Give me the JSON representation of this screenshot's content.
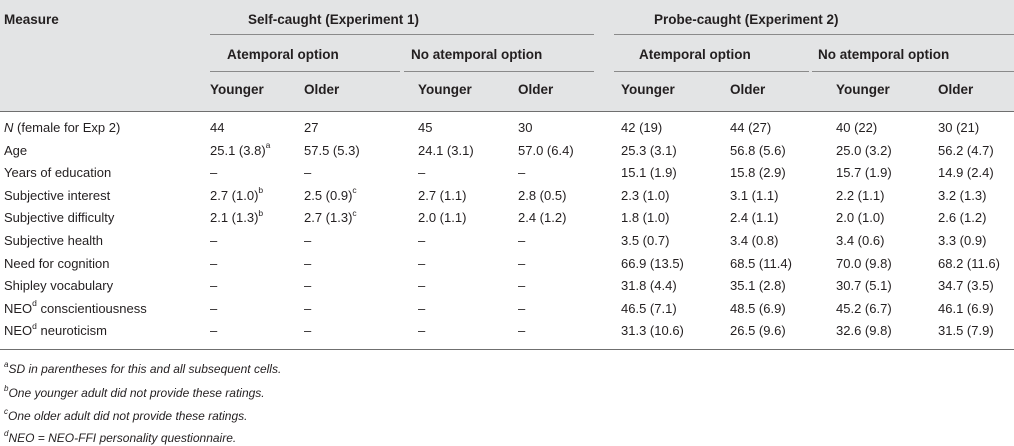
{
  "table": {
    "measure_header": "Measure",
    "exp1_header": "Self-caught (Experiment 1)",
    "exp2_header": "Probe-caught (Experiment 2)",
    "atemporal_option": "Atemporal option",
    "no_atemporal_option": "No atemporal option",
    "younger": "Younger",
    "older": "Older",
    "rows": [
      {
        "measure_italic": "N",
        "measure": " (female for Exp 2)",
        "values": [
          "44",
          "27",
          "45",
          "30",
          "42 (19)",
          "44 (27)",
          "40 (22)",
          "30 (21)"
        ],
        "sups": [
          "",
          "",
          "",
          "",
          "",
          "",
          "",
          ""
        ]
      },
      {
        "measure_italic": "",
        "measure": "Age",
        "values": [
          "25.1 (3.8)",
          "57.5 (5.3)",
          "24.1 (3.1)",
          "57.0 (6.4)",
          "25.3 (3.1)",
          "56.8 (5.6)",
          "25.0 (3.2)",
          "56.2 (4.7)"
        ],
        "sups": [
          "a",
          "",
          "",
          "",
          "",
          "",
          "",
          ""
        ]
      },
      {
        "measure_italic": "",
        "measure": "Years of education",
        "values": [
          "–",
          "–",
          "–",
          "–",
          "15.1 (1.9)",
          "15.8 (2.9)",
          "15.7 (1.9)",
          "14.9 (2.4)"
        ],
        "sups": [
          "",
          "",
          "",
          "",
          "",
          "",
          "",
          ""
        ]
      },
      {
        "measure_italic": "",
        "measure": "Subjective interest",
        "values": [
          "2.7 (1.0)",
          "2.5 (0.9)",
          "2.7 (1.1)",
          "2.8 (0.5)",
          "2.3 (1.0)",
          "3.1 (1.1)",
          "2.2 (1.1)",
          "3.2 (1.3)"
        ],
        "sups": [
          "b",
          "c",
          "",
          "",
          "",
          "",
          "",
          ""
        ]
      },
      {
        "measure_italic": "",
        "measure": "Subjective difficulty",
        "values": [
          "2.1 (1.3)",
          "2.7 (1.3)",
          "2.0 (1.1)",
          "2.4 (1.2)",
          "1.8 (1.0)",
          "2.4 (1.1)",
          "2.0 (1.0)",
          "2.6 (1.2)"
        ],
        "sups": [
          "b",
          "c",
          "",
          "",
          "",
          "",
          "",
          ""
        ]
      },
      {
        "measure_italic": "",
        "measure": "Subjective health",
        "values": [
          "–",
          "–",
          "–",
          "–",
          "3.5 (0.7)",
          "3.4 (0.8)",
          "3.4 (0.6)",
          "3.3 (0.9)"
        ],
        "sups": [
          "",
          "",
          "",
          "",
          "",
          "",
          "",
          ""
        ]
      },
      {
        "measure_italic": "",
        "measure": "Need for cognition",
        "values": [
          "–",
          "–",
          "–",
          "–",
          "66.9 (13.5)",
          "68.5 (11.4)",
          "70.0 (9.8)",
          "68.2 (11.6)"
        ],
        "sups": [
          "",
          "",
          "",
          "",
          "",
          "",
          "",
          ""
        ]
      },
      {
        "measure_italic": "",
        "measure": "Shipley vocabulary",
        "values": [
          "–",
          "–",
          "–",
          "–",
          "31.8 (4.4)",
          "35.1 (2.8)",
          "30.7 (5.1)",
          "34.7 (3.5)"
        ],
        "sups": [
          "",
          "",
          "",
          "",
          "",
          "",
          "",
          ""
        ]
      },
      {
        "measure_italic": "",
        "measure": "NEO",
        "measure_sup": "d",
        "measure_after": " conscientiousness",
        "values": [
          "–",
          "–",
          "–",
          "–",
          "46.5 (7.1)",
          "48.5 (6.9)",
          "45.2 (6.7)",
          "46.1 (6.9)"
        ],
        "sups": [
          "",
          "",
          "",
          "",
          "",
          "",
          "",
          ""
        ]
      },
      {
        "measure_italic": "",
        "measure": "NEO",
        "measure_sup": "d",
        "measure_after": " neuroticism",
        "values": [
          "–",
          "–",
          "–",
          "–",
          "31.3 (10.6)",
          "26.5 (9.6)",
          "32.6 (9.8)",
          "31.5 (7.9)"
        ],
        "sups": [
          "",
          "",
          "",
          "",
          "",
          "",
          "",
          ""
        ]
      }
    ]
  },
  "footnotes": [
    {
      "mark": "a",
      "text": "SD in parentheses for this and all subsequent cells."
    },
    {
      "mark": "b",
      "text": "One younger adult did not provide these ratings."
    },
    {
      "mark": "c",
      "text": "One older adult did not provide these ratings."
    },
    {
      "mark": "d",
      "text": "NEO = NEO-FFI personality questionnaire."
    }
  ]
}
